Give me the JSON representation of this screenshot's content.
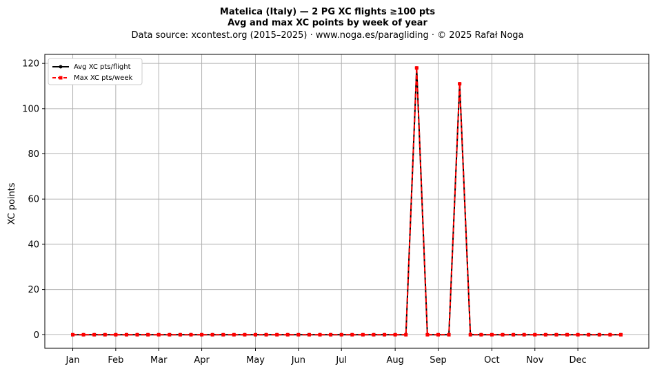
{
  "chart_data": {
    "type": "line",
    "title_line1": "Matelica (Italy)  —  2 PG XC flights ≥100 pts",
    "title_line2": "Avg and max XC points by week of year",
    "subtitle": "Data source: xcontest.org (2015–2025)  ·  www.noga.es/paragliding  ·  © 2025 Rafał Noga",
    "xlabel": "",
    "ylabel": "XC points",
    "ylim": [
      -6,
      124
    ],
    "xlim": [
      -1.6,
      54.6
    ],
    "yticks": [
      0,
      20,
      40,
      60,
      80,
      100,
      120
    ],
    "xticks": [
      {
        "week": 1,
        "label": "Jan"
      },
      {
        "week": 5,
        "label": "Feb"
      },
      {
        "week": 9,
        "label": "Mar"
      },
      {
        "week": 13,
        "label": "Apr"
      },
      {
        "week": 18,
        "label": "May"
      },
      {
        "week": 22,
        "label": "Jun"
      },
      {
        "week": 26,
        "label": "Jul"
      },
      {
        "week": 31,
        "label": "Aug"
      },
      {
        "week": 35,
        "label": "Sep"
      },
      {
        "week": 40,
        "label": "Oct"
      },
      {
        "week": 44,
        "label": "Nov"
      },
      {
        "week": 48,
        "label": "Dec"
      }
    ],
    "grid": true,
    "legend_position": "top-left",
    "x": [
      1,
      2,
      3,
      4,
      5,
      6,
      7,
      8,
      9,
      10,
      11,
      12,
      13,
      14,
      15,
      16,
      17,
      18,
      19,
      20,
      21,
      22,
      23,
      24,
      25,
      26,
      27,
      28,
      29,
      30,
      31,
      32,
      33,
      34,
      35,
      36,
      37,
      38,
      39,
      40,
      41,
      42,
      43,
      44,
      45,
      46,
      47,
      48,
      49,
      50,
      51,
      52
    ],
    "series": [
      {
        "name": "Avg XC pts/flight",
        "color": "#000000",
        "style": "solid-dot",
        "values": [
          0,
          0,
          0,
          0,
          0,
          0,
          0,
          0,
          0,
          0,
          0,
          0,
          0,
          0,
          0,
          0,
          0,
          0,
          0,
          0,
          0,
          0,
          0,
          0,
          0,
          0,
          0,
          0,
          0,
          0,
          0,
          0,
          118,
          0,
          0,
          0,
          111,
          0,
          0,
          0,
          0,
          0,
          0,
          0,
          0,
          0,
          0,
          0,
          0,
          0,
          0,
          0
        ]
      },
      {
        "name": "Max XC pts/week",
        "color": "#ff0000",
        "style": "dashed-square",
        "values": [
          0,
          0,
          0,
          0,
          0,
          0,
          0,
          0,
          0,
          0,
          0,
          0,
          0,
          0,
          0,
          0,
          0,
          0,
          0,
          0,
          0,
          0,
          0,
          0,
          0,
          0,
          0,
          0,
          0,
          0,
          0,
          0,
          118,
          0,
          0,
          0,
          111,
          0,
          0,
          0,
          0,
          0,
          0,
          0,
          0,
          0,
          0,
          0,
          0,
          0,
          0,
          0
        ]
      }
    ]
  }
}
